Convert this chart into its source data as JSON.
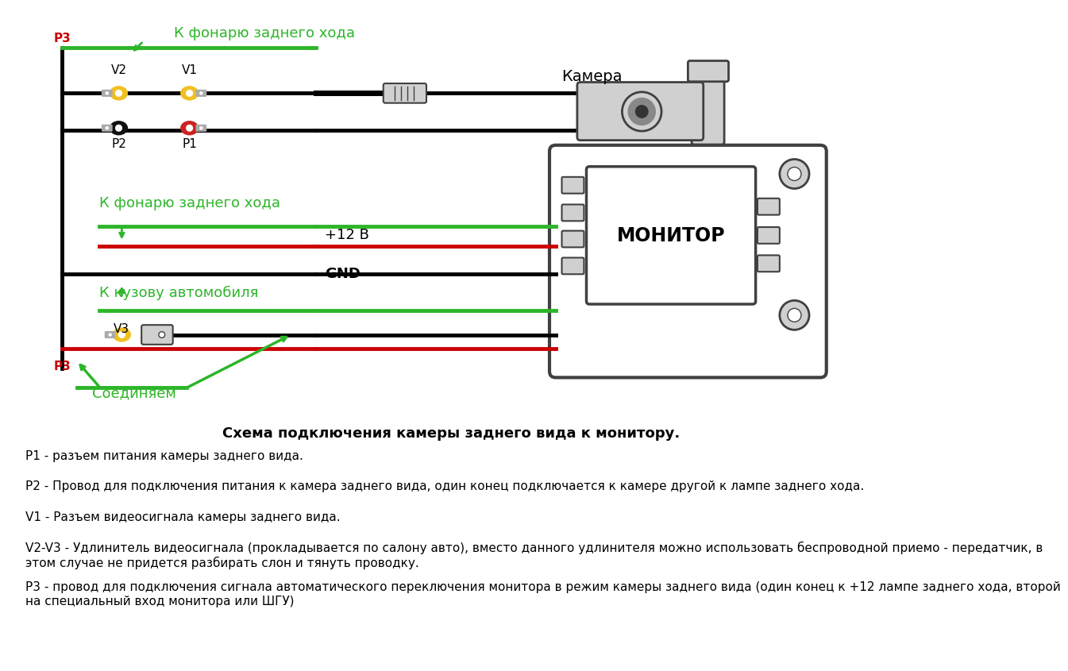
{
  "bg_color": "#ffffff",
  "title_text": "Схема подключения камеры заднего вида к монитору.",
  "description_lines": [
    "P1 - разъем питания камеры заднего вида.",
    "P2 - Провод для подключения питания к камера заднего вида, один конец подключается к камере другой к лампе заднего хода.",
    "V1 - Разъем видеосигнала камеры заднего вида.",
    "V2-V3 - Удлинитель видеосигнала (прокладывается по салону авто), вместо данного удлинителя можно использовать беспроводной приемо - передатчик, в\nэтом случае не придется разбирать слон и тянуть проводку.",
    "Р3 - провод для подключения сигнала автоматического переключения монитора в режим камеры заднего вида (один конец к +12 лампе заднего хода, второй\nна специальный вход монитора или ШГУ)"
  ],
  "green_color": "#2db529",
  "red_color": "#cc0000",
  "black_color": "#000000",
  "gray_color": "#808080",
  "yellow_color": "#f0c020",
  "dark_gray": "#404040",
  "light_gray": "#d0d0d0"
}
